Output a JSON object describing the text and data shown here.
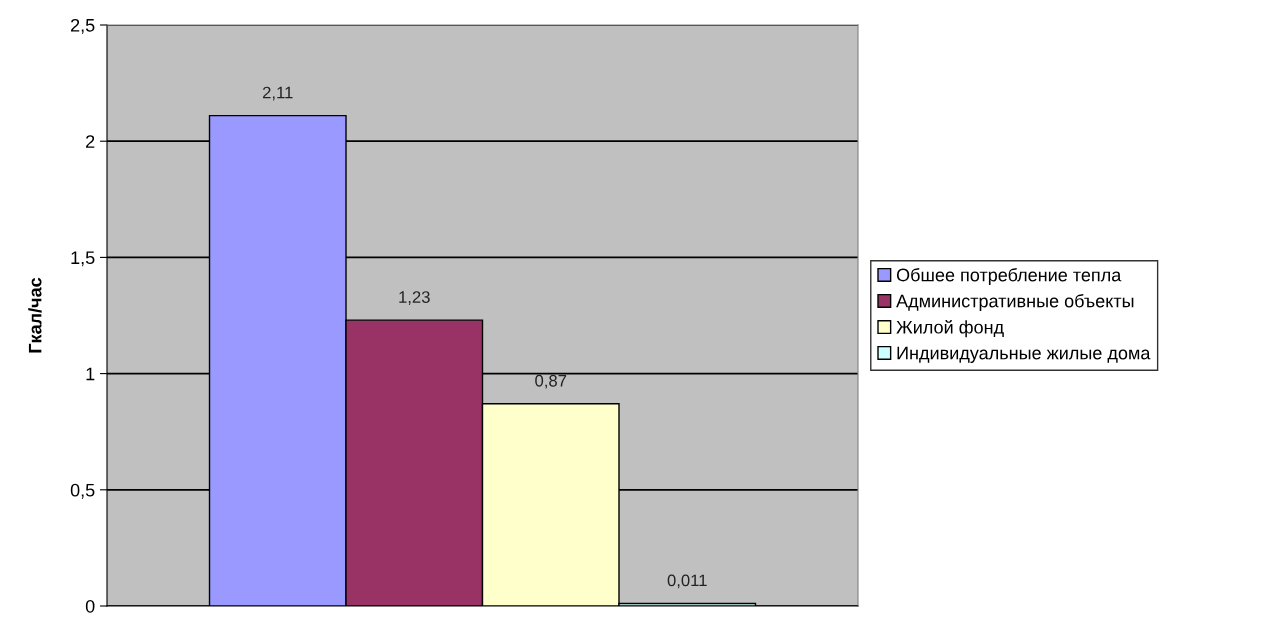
{
  "chart_data": {
    "type": "bar",
    "ylabel": "Гкал/час",
    "categories": [
      null
    ],
    "series": [
      {
        "name": "Обшее потребление тепла",
        "color": "#9999ff",
        "values": [
          2.11
        ],
        "value_labels": [
          "2,11"
        ]
      },
      {
        "name": "Административные объекты",
        "color": "#993366",
        "values": [
          1.23
        ],
        "value_labels": [
          "1,23"
        ]
      },
      {
        "name": "Жилой фонд",
        "color": "#ffffcc",
        "values": [
          0.87
        ],
        "value_labels": [
          "0,87"
        ]
      },
      {
        "name": "Индивидуальные жилые дома",
        "color": "#ccffff",
        "values": [
          0.011
        ],
        "value_labels": [
          "0,011"
        ]
      }
    ],
    "ylim": [
      0,
      2.5
    ],
    "yticks": [
      0,
      {
        "value": 0.5,
        "label": "0,5"
      },
      1,
      {
        "value": 1.5,
        "label": "1,5"
      },
      2,
      {
        "value": 2.5,
        "label": "2,5"
      }
    ],
    "grid": "y",
    "legend": "right"
  }
}
